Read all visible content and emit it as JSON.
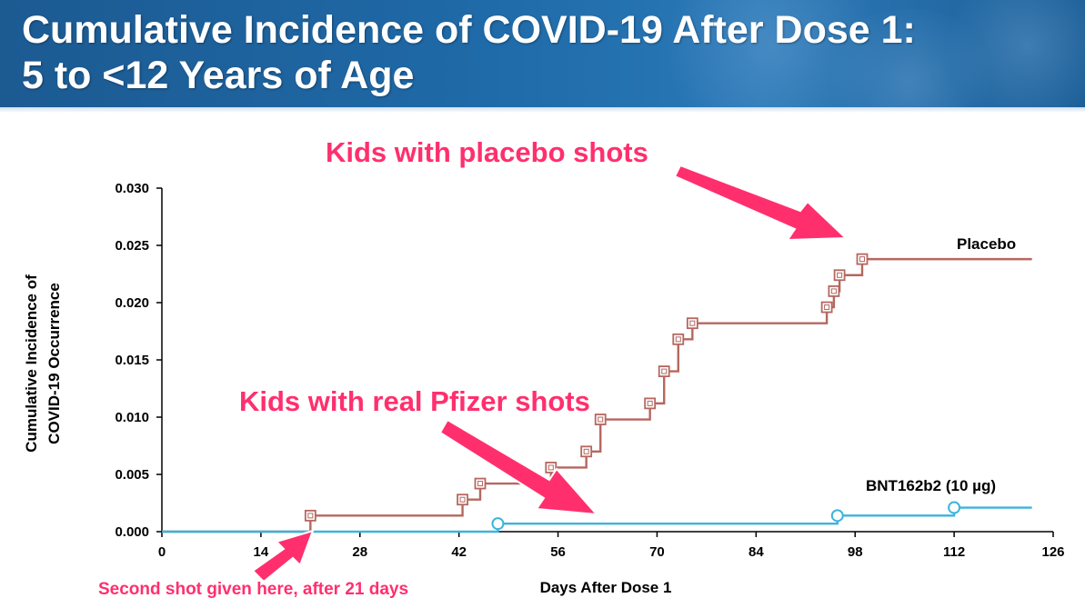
{
  "header": {
    "title_line1": "Cumulative Incidence of COVID-19 After Dose 1:",
    "title_line2": "5 to <12 Years of Age"
  },
  "chart_data": {
    "type": "line",
    "step": true,
    "xlabel": "Days After Dose 1",
    "ylabel_line1": "Cumulative Incidence of",
    "ylabel_line2": "COVID-19 Occurrence",
    "xlim": [
      0,
      126
    ],
    "ylim": [
      0,
      0.03
    ],
    "x_ticks": [
      0,
      14,
      28,
      42,
      56,
      70,
      84,
      98,
      112,
      126
    ],
    "y_ticks": [
      0.0,
      0.005,
      0.01,
      0.015,
      0.02,
      0.025,
      0.03
    ],
    "y_tick_labels": [
      "0.000",
      "0.005",
      "0.010",
      "0.015",
      "0.020",
      "0.025",
      "0.030"
    ],
    "grid": false,
    "series": [
      {
        "name": "Placebo",
        "color": "#b5675f",
        "marker": "square",
        "end_x": 123,
        "steps": [
          [
            0,
            0.0
          ],
          [
            21,
            0.0014
          ],
          [
            42.5,
            0.0028
          ],
          [
            45,
            0.0042
          ],
          [
            55,
            0.0056
          ],
          [
            60,
            0.007
          ],
          [
            62,
            0.0098
          ],
          [
            69,
            0.0112
          ],
          [
            71,
            0.014
          ],
          [
            73,
            0.0168
          ],
          [
            75,
            0.0182
          ],
          [
            94,
            0.0196
          ],
          [
            95,
            0.021
          ],
          [
            95.8,
            0.0224
          ],
          [
            99,
            0.0238
          ]
        ]
      },
      {
        "name": "BNT162b2 (10 µg)",
        "color": "#3db3dc",
        "marker": "circle",
        "end_x": 123,
        "steps": [
          [
            0,
            0.0
          ],
          [
            47.5,
            0.0007
          ],
          [
            95.5,
            0.0014
          ],
          [
            112,
            0.0021
          ]
        ]
      }
    ],
    "annotations": [
      {
        "text": "Kids with placebo shots",
        "color": "#ff2f6d"
      },
      {
        "text": "Kids with real Pfizer shots",
        "color": "#ff2f6d"
      },
      {
        "text": "Second shot given here, after 21 days",
        "color": "#ff2f6d"
      }
    ]
  }
}
